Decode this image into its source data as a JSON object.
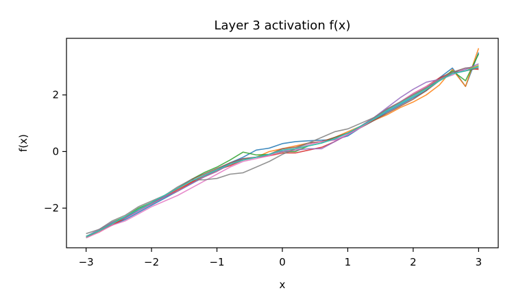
{
  "chart_data": {
    "type": "line",
    "title": "Layer 3 activation f(x)",
    "xlabel": "x",
    "ylabel": "f(x)",
    "xlim": [
      -3.3,
      3.3
    ],
    "ylim": [
      -3.4,
      4.0
    ],
    "grid": false,
    "legend": "none",
    "x_ticks": [
      -3,
      -2,
      -1,
      0,
      1,
      2,
      3
    ],
    "x_tick_labels": [
      "−3",
      "−2",
      "−1",
      "0",
      "1",
      "2",
      "3"
    ],
    "y_ticks": [
      -2,
      0,
      2
    ],
    "y_tick_labels": [
      "−2",
      "0",
      "2"
    ],
    "x": [
      -3.0,
      -2.8,
      -2.6,
      -2.4,
      -2.2,
      -2.0,
      -1.8,
      -1.6,
      -1.4,
      -1.2,
      -1.0,
      -0.8,
      -0.6,
      -0.4,
      -0.2,
      0.0,
      0.2,
      0.4,
      0.6,
      0.8,
      1.0,
      1.2,
      1.4,
      1.6,
      1.8,
      2.0,
      2.2,
      2.4,
      2.6,
      2.8,
      3.0
    ],
    "series": [
      {
        "color": "#1f77b4",
        "values": [
          -3.0,
          -2.8,
          -2.6,
          -2.4,
          -2.15,
          -1.9,
          -1.65,
          -1.4,
          -1.15,
          -0.9,
          -0.65,
          -0.4,
          -0.2,
          0.05,
          0.12,
          0.28,
          0.35,
          0.38,
          0.4,
          0.42,
          0.55,
          0.85,
          1.1,
          1.4,
          1.65,
          1.9,
          2.15,
          2.6,
          2.95,
          2.3,
          3.5
        ]
      },
      {
        "color": "#ff7f0e",
        "values": [
          -3.0,
          -2.85,
          -2.55,
          -2.35,
          -2.05,
          -1.85,
          -1.6,
          -1.4,
          -1.1,
          -0.9,
          -0.7,
          -0.45,
          -0.3,
          -0.2,
          0.0,
          0.1,
          0.2,
          0.3,
          0.35,
          0.5,
          0.7,
          0.9,
          1.1,
          1.3,
          1.55,
          1.75,
          2.0,
          2.35,
          2.9,
          2.3,
          3.65
        ]
      },
      {
        "color": "#2ca02c",
        "values": [
          -3.05,
          -2.8,
          -2.5,
          -2.3,
          -2.0,
          -1.8,
          -1.55,
          -1.3,
          -1.0,
          -0.75,
          -0.55,
          -0.3,
          -0.02,
          -0.12,
          -0.1,
          0.0,
          0.0,
          0.2,
          0.3,
          0.5,
          0.65,
          0.9,
          1.15,
          1.45,
          1.75,
          2.0,
          2.25,
          2.55,
          2.85,
          2.5,
          3.45
        ]
      },
      {
        "color": "#d62728",
        "values": [
          -3.0,
          -2.8,
          -2.6,
          -2.35,
          -2.05,
          -1.8,
          -1.6,
          -1.35,
          -1.1,
          -0.85,
          -0.65,
          -0.5,
          -0.3,
          -0.2,
          -0.15,
          -0.05,
          -0.05,
          0.05,
          0.15,
          0.35,
          0.6,
          0.9,
          1.2,
          1.5,
          1.75,
          2.05,
          2.3,
          2.6,
          2.8,
          2.95,
          2.9
        ]
      },
      {
        "color": "#9467bd",
        "values": [
          -3.0,
          -2.75,
          -2.5,
          -2.35,
          -2.1,
          -1.85,
          -1.6,
          -1.4,
          -1.15,
          -0.9,
          -0.7,
          -0.45,
          -0.25,
          -0.2,
          -0.1,
          0.0,
          0.05,
          0.1,
          0.1,
          0.35,
          0.6,
          0.9,
          1.2,
          1.55,
          1.9,
          2.2,
          2.45,
          2.55,
          2.8,
          2.9,
          3.1
        ]
      },
      {
        "color": "#8c564b",
        "values": [
          -3.0,
          -2.8,
          -2.55,
          -2.3,
          -2.05,
          -1.8,
          -1.55,
          -1.3,
          -1.0,
          -0.8,
          -0.6,
          -0.4,
          -0.25,
          -0.2,
          -0.1,
          0.1,
          0.15,
          0.3,
          0.35,
          0.5,
          0.65,
          0.85,
          1.1,
          1.35,
          1.6,
          1.85,
          2.15,
          2.5,
          2.8,
          2.85,
          2.95
        ]
      },
      {
        "color": "#e377c2",
        "values": [
          -3.05,
          -2.85,
          -2.6,
          -2.45,
          -2.2,
          -1.95,
          -1.75,
          -1.55,
          -1.3,
          -1.05,
          -0.8,
          -0.55,
          -0.35,
          -0.25,
          -0.15,
          0.05,
          0.05,
          0.25,
          0.35,
          0.4,
          0.6,
          0.85,
          1.15,
          1.45,
          1.75,
          2.05,
          2.3,
          2.55,
          2.7,
          2.95,
          3.0
        ]
      },
      {
        "color": "#7f7f7f",
        "values": [
          -2.9,
          -2.75,
          -2.45,
          -2.25,
          -1.95,
          -1.75,
          -1.55,
          -1.25,
          -1.0,
          -1.0,
          -0.95,
          -0.8,
          -0.75,
          -0.55,
          -0.35,
          -0.1,
          0.1,
          0.3,
          0.5,
          0.7,
          0.8,
          1.0,
          1.2,
          1.5,
          1.75,
          2.0,
          2.25,
          2.55,
          2.8,
          2.95,
          3.0
        ]
      },
      {
        "color": "#bcbd22",
        "values": [
          -3.0,
          -2.8,
          -2.55,
          -2.3,
          -2.05,
          -1.8,
          -1.55,
          -1.3,
          -1.05,
          -0.85,
          -0.65,
          -0.45,
          -0.3,
          -0.2,
          -0.1,
          0.05,
          0.1,
          0.2,
          0.3,
          0.45,
          0.65,
          0.9,
          1.15,
          1.45,
          1.7,
          1.95,
          2.2,
          2.5,
          2.75,
          2.85,
          3.05
        ]
      },
      {
        "color": "#17becf",
        "values": [
          -3.0,
          -2.8,
          -2.55,
          -2.3,
          -2.05,
          -1.8,
          -1.55,
          -1.3,
          -1.05,
          -0.85,
          -0.65,
          -0.45,
          -0.3,
          -0.2,
          -0.1,
          0.05,
          0.1,
          0.2,
          0.3,
          0.45,
          0.65,
          0.9,
          1.15,
          1.45,
          1.7,
          1.95,
          2.2,
          2.5,
          2.75,
          2.85,
          3.0
        ]
      }
    ]
  }
}
